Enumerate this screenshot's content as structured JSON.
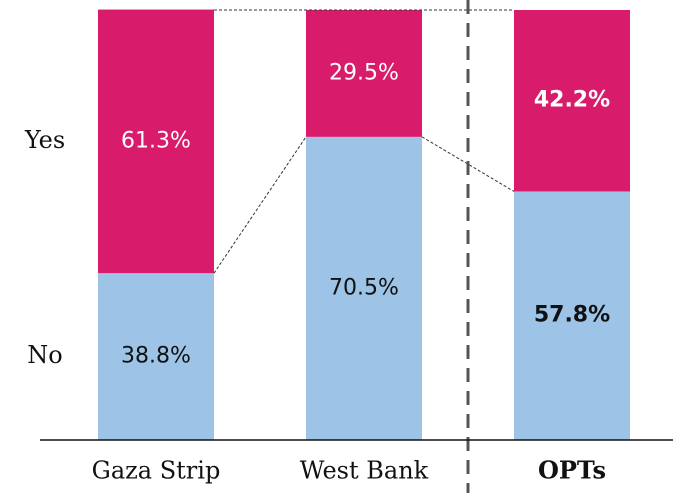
{
  "chart_data": {
    "type": "stacked_bar",
    "categories": [
      "Gaza Strip",
      "West Bank",
      "OPTs"
    ],
    "series": [
      {
        "name": "No",
        "color": "#9dc3e6",
        "values": [
          38.8,
          70.5,
          57.8
        ],
        "value_labels": [
          "38.8%",
          "70.5%",
          "57.8%"
        ]
      },
      {
        "name": "Yes",
        "color": "#d81b6a",
        "values": [
          61.3,
          29.5,
          42.2
        ],
        "value_labels": [
          "61.3%",
          "29.5%",
          "42.2%"
        ]
      }
    ],
    "ylim": [
      0,
      100
    ],
    "bold_category_index": 2,
    "separator_after_index": 1
  }
}
